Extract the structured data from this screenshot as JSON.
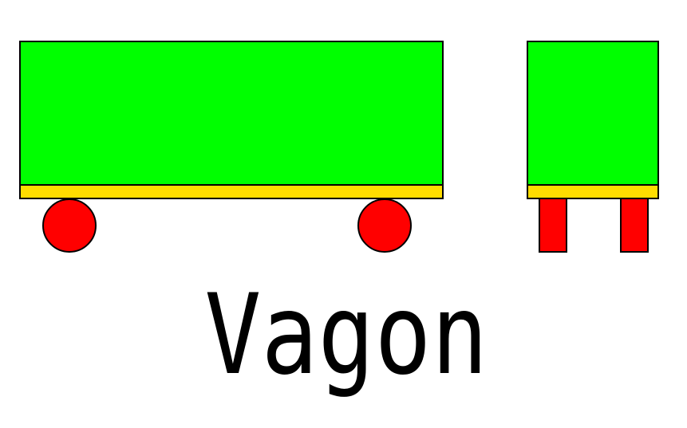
{
  "title": "Vagon",
  "colors": {
    "body": "#00ff00",
    "chassis": "#ffdd00",
    "wheels": "#ff0000",
    "outline": "#000000"
  }
}
